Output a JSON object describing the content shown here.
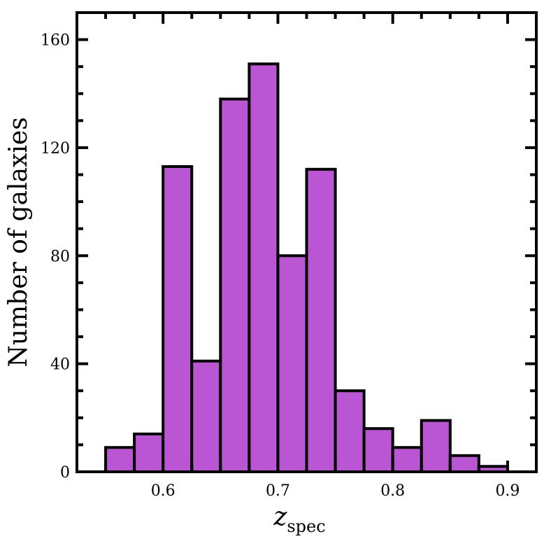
{
  "chart_data": {
    "type": "bar",
    "subtype": "histogram",
    "title": "",
    "xlabel": "z",
    "xlabel_subscript": "spec",
    "ylabel": "Number of galaxies",
    "xlim": [
      0.525,
      0.925
    ],
    "ylim": [
      0,
      170
    ],
    "bin_width": 0.025,
    "bins": [
      {
        "x0": 0.55,
        "x1": 0.575,
        "count": 9
      },
      {
        "x0": 0.575,
        "x1": 0.6,
        "count": 14
      },
      {
        "x0": 0.6,
        "x1": 0.625,
        "count": 113
      },
      {
        "x0": 0.625,
        "x1": 0.65,
        "count": 41
      },
      {
        "x0": 0.65,
        "x1": 0.675,
        "count": 138
      },
      {
        "x0": 0.675,
        "x1": 0.7,
        "count": 151
      },
      {
        "x0": 0.7,
        "x1": 0.725,
        "count": 80
      },
      {
        "x0": 0.725,
        "x1": 0.75,
        "count": 112
      },
      {
        "x0": 0.75,
        "x1": 0.775,
        "count": 30
      },
      {
        "x0": 0.775,
        "x1": 0.8,
        "count": 16
      },
      {
        "x0": 0.8,
        "x1": 0.825,
        "count": 9
      },
      {
        "x0": 0.825,
        "x1": 0.85,
        "count": 19
      },
      {
        "x0": 0.85,
        "x1": 0.875,
        "count": 6
      },
      {
        "x0": 0.875,
        "x1": 0.9,
        "count": 2
      }
    ],
    "x_ticks": [
      0.6,
      0.7,
      0.8,
      0.9
    ],
    "x_tick_labels": [
      "0.6",
      "0.7",
      "0.8",
      "0.9"
    ],
    "y_ticks": [
      0,
      40,
      80,
      120,
      160
    ],
    "y_tick_labels": [
      "0",
      "40",
      "80",
      "120",
      "160"
    ],
    "bar_color": "#ba55d3",
    "edge_color": "#000000",
    "grid": false,
    "legend": null
  }
}
